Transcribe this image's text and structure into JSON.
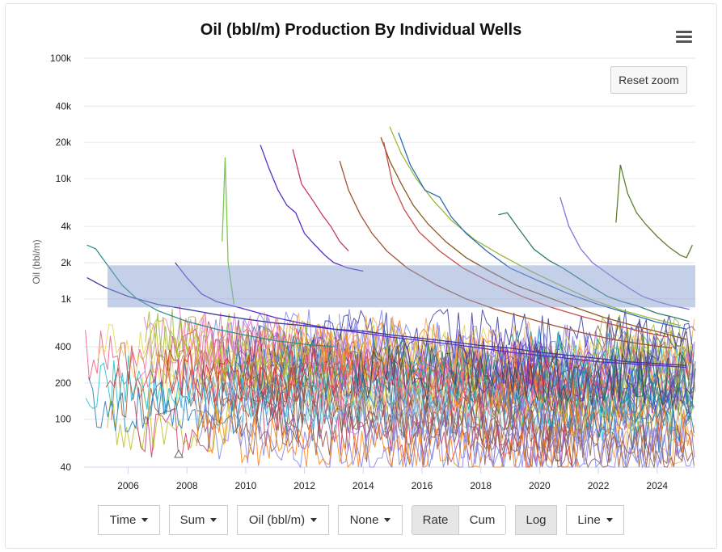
{
  "chart_data": {
    "type": "line",
    "title": "Oil (bbl/m) Production By Individual Wells",
    "ylabel": "Oil (bbl/m)",
    "xlabel": "",
    "y_scale": "log",
    "ylim": [
      40,
      100000
    ],
    "xlim": [
      2004.5,
      2025.3
    ],
    "y_ticks": [
      {
        "value": 100000,
        "label": "100k"
      },
      {
        "value": 40000,
        "label": "40k"
      },
      {
        "value": 20000,
        "label": "20k"
      },
      {
        "value": 10000,
        "label": "10k"
      },
      {
        "value": 4000,
        "label": "4k"
      },
      {
        "value": 2000,
        "label": "2k"
      },
      {
        "value": 1000,
        "label": "1k"
      },
      {
        "value": 400,
        "label": "400"
      },
      {
        "value": 200,
        "label": "200"
      },
      {
        "value": 100,
        "label": "100"
      },
      {
        "value": 40,
        "label": "40"
      }
    ],
    "x_ticks": [
      "2006",
      "2008",
      "2010",
      "2012",
      "2014",
      "2016",
      "2018",
      "2020",
      "2022",
      "2024"
    ],
    "grid": true,
    "legend": "none",
    "zoom_selection": {
      "x_range": [
        2005.3,
        2025.3
      ],
      "y_range": [
        850,
        1900
      ]
    },
    "highlighted_series": [
      {
        "color": "#5b2fc9",
        "points": [
          [
            2010.5,
            19000
          ],
          [
            2010.8,
            12000
          ],
          [
            2011.1,
            8000
          ],
          [
            2011.4,
            6000
          ],
          [
            2011.7,
            5200
          ],
          [
            2012.0,
            3500
          ],
          [
            2012.3,
            2900
          ],
          [
            2012.7,
            2300
          ],
          [
            2013.0,
            2000
          ],
          [
            2013.5,
            1800
          ],
          [
            2014.0,
            1700
          ]
        ]
      },
      {
        "color": "#c63a6b",
        "points": [
          [
            2011.6,
            17500
          ],
          [
            2011.9,
            9000
          ],
          [
            2012.3,
            6500
          ],
          [
            2012.6,
            5000
          ],
          [
            2012.9,
            4000
          ],
          [
            2013.2,
            3000
          ],
          [
            2013.5,
            2500
          ]
        ]
      },
      {
        "color": "#8a5a1e",
        "points": [
          [
            2014.6,
            22000
          ],
          [
            2014.9,
            14000
          ],
          [
            2015.3,
            9000
          ],
          [
            2015.7,
            6000
          ],
          [
            2016.2,
            4200
          ],
          [
            2016.8,
            3000
          ],
          [
            2017.5,
            2200
          ],
          [
            2018.3,
            1700
          ],
          [
            2019.2,
            1300
          ],
          [
            2020.2,
            1050
          ],
          [
            2021.2,
            850
          ],
          [
            2022.2,
            700
          ],
          [
            2023.2,
            600
          ],
          [
            2024.2,
            520
          ],
          [
            2025.0,
            460
          ]
        ]
      },
      {
        "color": "#9cb83a",
        "points": [
          [
            2014.9,
            27000
          ],
          [
            2015.3,
            16000
          ],
          [
            2015.8,
            10000
          ],
          [
            2016.4,
            6500
          ],
          [
            2017.0,
            4500
          ],
          [
            2017.8,
            3100
          ],
          [
            2018.7,
            2300
          ],
          [
            2019.7,
            1700
          ],
          [
            2020.7,
            1300
          ],
          [
            2021.7,
            1000
          ],
          [
            2022.7,
            820
          ],
          [
            2023.7,
            700
          ],
          [
            2024.8,
            600
          ]
        ]
      },
      {
        "color": "#2b6cb0",
        "points": [
          [
            2015.2,
            24000
          ],
          [
            2015.6,
            13000
          ],
          [
            2016.1,
            8000
          ],
          [
            2016.6,
            7000
          ],
          [
            2017.0,
            4800
          ],
          [
            2017.5,
            3500
          ],
          [
            2018.2,
            2500
          ],
          [
            2019.0,
            1800
          ],
          [
            2020.0,
            1400
          ],
          [
            2021.0,
            1100
          ],
          [
            2022.0,
            900
          ],
          [
            2023.0,
            760
          ],
          [
            2024.0,
            640
          ],
          [
            2025.0,
            560
          ]
        ]
      },
      {
        "color": "#2e7d6b",
        "points": [
          [
            2018.6,
            5000
          ],
          [
            2018.9,
            5200
          ],
          [
            2019.3,
            3800
          ],
          [
            2019.8,
            2600
          ],
          [
            2020.3,
            2100
          ],
          [
            2020.8,
            1800
          ],
          [
            2021.3,
            1500
          ],
          [
            2021.8,
            1250
          ],
          [
            2022.3,
            1050
          ],
          [
            2022.8,
            950
          ],
          [
            2023.3,
            880
          ],
          [
            2024.0,
            760
          ],
          [
            2024.6,
            700
          ],
          [
            2025.1,
            650
          ]
        ]
      },
      {
        "color": "#8b6fd6",
        "points": [
          [
            2020.7,
            7000
          ],
          [
            2021.0,
            4000
          ],
          [
            2021.4,
            2600
          ],
          [
            2021.8,
            2000
          ],
          [
            2022.2,
            1700
          ],
          [
            2022.6,
            1450
          ],
          [
            2023.0,
            1250
          ],
          [
            2023.5,
            1050
          ],
          [
            2024.0,
            950
          ],
          [
            2024.5,
            880
          ],
          [
            2025.1,
            820
          ]
        ]
      },
      {
        "color": "#5e7f2a",
        "points": [
          [
            2022.6,
            4300
          ],
          [
            2022.75,
            13000
          ],
          [
            2023.0,
            7500
          ],
          [
            2023.3,
            5200
          ],
          [
            2023.6,
            4200
          ],
          [
            2024.0,
            3300
          ],
          [
            2024.4,
            2700
          ],
          [
            2024.8,
            2300
          ],
          [
            2025.0,
            2200
          ],
          [
            2025.2,
            2800
          ]
        ]
      },
      {
        "color": "#3a3aa0",
        "points": [
          [
            2004.6,
            1500
          ],
          [
            2005.2,
            1250
          ],
          [
            2006.0,
            1050
          ],
          [
            2007.0,
            900
          ],
          [
            2008.0,
            820
          ],
          [
            2009.0,
            740
          ],
          [
            2010.0,
            680
          ],
          [
            2011.0,
            630
          ],
          [
            2012.0,
            600
          ],
          [
            2013.0,
            560
          ],
          [
            2014.0,
            540
          ],
          [
            2015.0,
            500
          ],
          [
            2016.0,
            470
          ],
          [
            2017.0,
            440
          ],
          [
            2018.0,
            410
          ],
          [
            2019.0,
            390
          ],
          [
            2020.0,
            360
          ],
          [
            2021.0,
            340
          ],
          [
            2022.0,
            320
          ],
          [
            2023.0,
            300
          ],
          [
            2024.0,
            290
          ],
          [
            2025.0,
            280
          ]
        ]
      },
      {
        "color": "#2f8f8f",
        "points": [
          [
            2004.6,
            2800
          ],
          [
            2004.9,
            2600
          ],
          [
            2005.3,
            1900
          ],
          [
            2005.8,
            1300
          ],
          [
            2006.3,
            1000
          ],
          [
            2007.0,
            800
          ],
          [
            2008.0,
            650
          ],
          [
            2009.0,
            560
          ],
          [
            2010.0,
            500
          ],
          [
            2011.0,
            450
          ],
          [
            2012.0,
            420
          ],
          [
            2013.0,
            400
          ]
        ]
      },
      {
        "color": "#5b2fc9",
        "points": [
          [
            2007.6,
            2000
          ],
          [
            2008.0,
            1500
          ],
          [
            2008.5,
            1100
          ],
          [
            2009.0,
            950
          ],
          [
            2010.0,
            820
          ],
          [
            2011.0,
            700
          ],
          [
            2012.0,
            620
          ],
          [
            2013.0,
            560
          ],
          [
            2014.0,
            520
          ],
          [
            2015.0,
            480
          ],
          [
            2016.0,
            450
          ],
          [
            2017.0,
            420
          ],
          [
            2018.0,
            390
          ],
          [
            2019.0,
            360
          ],
          [
            2020.0,
            340
          ],
          [
            2021.0,
            320
          ],
          [
            2022.0,
            300
          ],
          [
            2023.0,
            290
          ],
          [
            2024.0,
            280
          ],
          [
            2025.0,
            270
          ]
        ]
      },
      {
        "color": "#7ec850",
        "points": [
          [
            2009.2,
            3000
          ],
          [
            2009.3,
            15000
          ],
          [
            2009.4,
            2000
          ],
          [
            2009.6,
            900
          ]
        ]
      },
      {
        "color": "#a0522d",
        "points": [
          [
            2013.2,
            14000
          ],
          [
            2013.5,
            8000
          ],
          [
            2013.9,
            5000
          ],
          [
            2014.3,
            3500
          ],
          [
            2014.8,
            2500
          ],
          [
            2015.5,
            1800
          ],
          [
            2016.5,
            1300
          ],
          [
            2017.5,
            1000
          ],
          [
            2018.5,
            820
          ],
          [
            2019.5,
            700
          ],
          [
            2020.5,
            600
          ],
          [
            2021.5,
            520
          ],
          [
            2022.5,
            460
          ],
          [
            2023.5,
            420
          ],
          [
            2024.5,
            390
          ]
        ]
      },
      {
        "color": "#cc4b4b",
        "points": [
          [
            2014.7,
            20000
          ],
          [
            2015.0,
            9000
          ],
          [
            2015.4,
            5500
          ],
          [
            2015.9,
            3600
          ],
          [
            2016.6,
            2500
          ],
          [
            2017.4,
            1800
          ],
          [
            2018.4,
            1350
          ],
          [
            2019.4,
            1050
          ],
          [
            2020.4,
            850
          ],
          [
            2021.4,
            720
          ],
          [
            2022.4,
            620
          ],
          [
            2023.4,
            540
          ],
          [
            2024.4,
            480
          ]
        ]
      }
    ]
  },
  "menu_icon": "hamburger-menu-icon",
  "reset_zoom_label": "Reset zoom",
  "controls": {
    "time": "Time",
    "sum": "Sum",
    "metric": "Oil (bbl/m)",
    "none": "None",
    "rate": "Rate",
    "cum": "Cum",
    "log": "Log",
    "line": "Line"
  },
  "colors": {
    "zoom_band": "#8a9fd1",
    "grid": "#e6e6e6",
    "active_button": "#e6e6e6"
  }
}
